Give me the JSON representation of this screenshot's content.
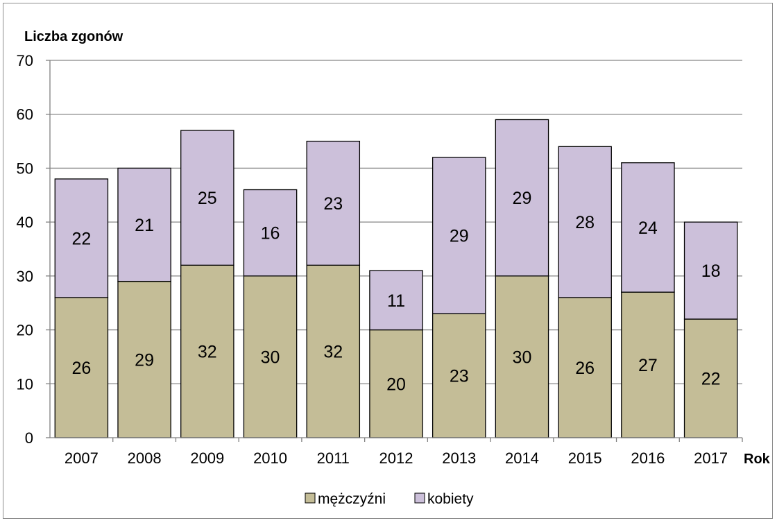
{
  "chart_data": {
    "type": "bar",
    "stacked": true,
    "title": "",
    "ylabel": "Liczba zgonów",
    "xlabel": "Rok",
    "categories": [
      "2007",
      "2008",
      "2009",
      "2010",
      "2011",
      "2012",
      "2013",
      "2014",
      "2015",
      "2016",
      "2017"
    ],
    "series": [
      {
        "name": "mężczyźni",
        "color": "#c4bd97",
        "values": [
          26,
          29,
          32,
          30,
          32,
          20,
          23,
          30,
          26,
          27,
          22
        ]
      },
      {
        "name": "kobiety",
        "color": "#ccc0da",
        "values": [
          22,
          21,
          25,
          16,
          23,
          11,
          29,
          29,
          28,
          24,
          18
        ]
      }
    ],
    "ylim": [
      0,
      70
    ],
    "yticks": [
      0,
      10,
      20,
      30,
      40,
      50,
      60,
      70
    ],
    "grid": true,
    "legend": "bottom"
  }
}
